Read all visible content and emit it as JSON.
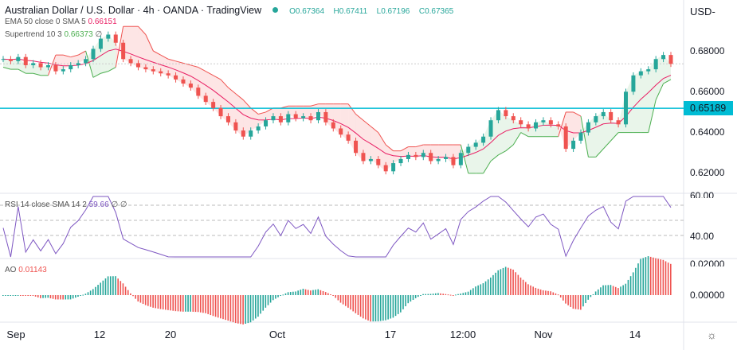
{
  "header": {
    "title": "Australian Dollar / U.S. Dollar · 4h · OANDA · TradingView",
    "open": "O0.67364",
    "high": "H0.67411",
    "low": "L0.67196",
    "close": "C0.67365"
  },
  "indicators": {
    "ema": {
      "label": "EMA 50 close 0 SMA 5",
      "value": "0.66151",
      "color": "#e91e63"
    },
    "supertrend": {
      "label": "Supertrend 10 3",
      "value": "0.66373",
      "extra": "∅",
      "color": "#4caf50"
    },
    "rsi": {
      "label": "RSI 14 close SMA 14 2",
      "value": "59.66",
      "extra": "∅ ∅",
      "color": "#7e57c2"
    },
    "ao": {
      "label": "AO",
      "value": "0.01143",
      "color": "#ef5350"
    }
  },
  "price_axis": {
    "currency": "USD",
    "labels": [
      "0.68000",
      "0.66000",
      "0.64000",
      "0.62000"
    ],
    "horizontal_line": "0.65189",
    "line_color": "#00bcd4"
  },
  "rsi_axis": {
    "labels": [
      "60.00",
      "40.00"
    ]
  },
  "ao_axis": {
    "labels": [
      "0.02000",
      "0.00000"
    ]
  },
  "time_axis": [
    "Sep",
    "12",
    "20",
    "Oct",
    "17",
    "12:00",
    "Nov",
    "14"
  ],
  "chart_data": {
    "type": "candlestick",
    "interval": "4h",
    "up_color": "#26a69a",
    "down_color": "#ef5350",
    "closes": [
      0.676,
      0.675,
      0.677,
      0.673,
      0.674,
      0.672,
      0.673,
      0.67,
      0.671,
      0.673,
      0.674,
      0.676,
      0.681,
      0.686,
      0.688,
      0.684,
      0.676,
      0.674,
      0.672,
      0.671,
      0.67,
      0.669,
      0.668,
      0.666,
      0.664,
      0.662,
      0.658,
      0.655,
      0.652,
      0.648,
      0.645,
      0.641,
      0.638,
      0.641,
      0.643,
      0.646,
      0.648,
      0.645,
      0.649,
      0.647,
      0.648,
      0.646,
      0.65,
      0.645,
      0.642,
      0.639,
      0.636,
      0.63,
      0.626,
      0.627,
      0.624,
      0.621,
      0.625,
      0.627,
      0.629,
      0.628,
      0.63,
      0.626,
      0.627,
      0.628,
      0.624,
      0.63,
      0.633,
      0.635,
      0.638,
      0.646,
      0.651,
      0.648,
      0.646,
      0.644,
      0.642,
      0.645,
      0.646,
      0.644,
      0.643,
      0.632,
      0.636,
      0.64,
      0.645,
      0.648,
      0.65,
      0.646,
      0.644,
      0.66,
      0.668,
      0.67,
      0.671,
      0.676,
      0.678,
      0.67365
    ]
  }
}
